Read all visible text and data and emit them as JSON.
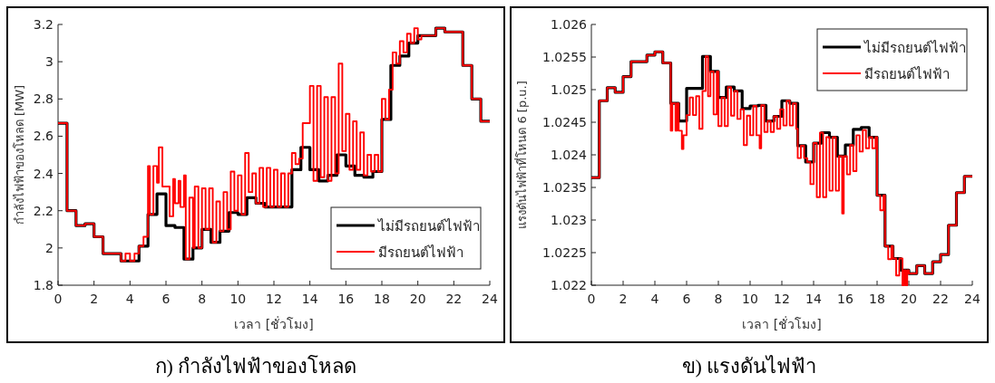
{
  "chart_data": [
    {
      "type": "step",
      "title": "ก) กำลังไฟฟ้าของโหลด",
      "xlabel": "เวลา [ชั่วโมง]",
      "ylabel": "กำลังไฟฟ้าของโหลด [MW]",
      "xlim": [
        0,
        24
      ],
      "xticks": [
        0,
        2,
        4,
        6,
        8,
        10,
        12,
        14,
        16,
        18,
        20,
        22,
        24
      ],
      "ylim": [
        1.8,
        3.2
      ],
      "yticks": [
        1.8,
        2,
        2.2,
        2.4,
        2.6,
        2.8,
        3,
        3.2
      ],
      "legend": "bottom right",
      "grid": false,
      "line_style": "solid",
      "series": [
        {
          "name": "ไม่มีรถยนต์ไฟฟ้า",
          "color": "#000000",
          "x": [
            0,
            0.5,
            1,
            1.5,
            2,
            2.5,
            3,
            3.5,
            4,
            4.5,
            5,
            5.5,
            6,
            6.5,
            7,
            7.5,
            8,
            8.5,
            9,
            9.5,
            10,
            10.5,
            11,
            11.5,
            12,
            12.5,
            13,
            13.5,
            14,
            14.5,
            15,
            15.5,
            16,
            16.5,
            17,
            17.5,
            18,
            18.5,
            19,
            19.5,
            20,
            20.5,
            21,
            21.5,
            22,
            22.5,
            23,
            23.5,
            24
          ],
          "values": [
            2.67,
            2.2,
            2.12,
            2.13,
            2.06,
            1.97,
            1.97,
            1.93,
            1.93,
            2.01,
            2.18,
            2.29,
            2.12,
            2.11,
            1.94,
            2.0,
            2.1,
            2.03,
            2.09,
            2.19,
            2.18,
            2.27,
            2.24,
            2.22,
            2.22,
            2.22,
            2.42,
            2.54,
            2.42,
            2.36,
            2.39,
            2.5,
            2.44,
            2.39,
            2.38,
            2.41,
            2.69,
            2.98,
            3.03,
            3.1,
            3.14,
            3.14,
            3.18,
            3.16,
            3.16,
            2.98,
            2.8,
            2.68,
            2.68
          ]
        },
        {
          "name": "มีรถยนต์ไฟฟ้า",
          "color": "#ff0000",
          "x": [
            0,
            0.5,
            1,
            1.5,
            2,
            2.5,
            3.5,
            3.75,
            4,
            4.25,
            4.5,
            4.75,
            5,
            5.1,
            5.3,
            5.5,
            5.6,
            5.8,
            6,
            6.2,
            6.4,
            6.5,
            6.7,
            6.8,
            7,
            7.1,
            7.3,
            7.5,
            7.6,
            7.8,
            8,
            8.2,
            8.4,
            8.6,
            8.8,
            9,
            9.2,
            9.4,
            9.6,
            9.8,
            10,
            10.2,
            10.4,
            10.6,
            10.8,
            11,
            11.2,
            11.4,
            11.6,
            11.8,
            12,
            12.2,
            12.4,
            12.6,
            12.8,
            13,
            13.2,
            13.4,
            13.6,
            14,
            14.2,
            14.4,
            14.6,
            14.8,
            15,
            15.2,
            15.4,
            15.6,
            15.8,
            16,
            16.2,
            16.4,
            16.6,
            16.8,
            17,
            17.2,
            17.4,
            17.6,
            17.8,
            18,
            18.2,
            18.4,
            18.6,
            18.8,
            19,
            19.2,
            19.4,
            19.6,
            19.8,
            20,
            20.2,
            21,
            21.5,
            22.5,
            23,
            23.5,
            24
          ],
          "values": [
            2.67,
            2.2,
            2.12,
            2.13,
            2.06,
            1.97,
            1.93,
            1.97,
            1.93,
            1.97,
            2.01,
            2.06,
            2.44,
            2.18,
            2.44,
            2.35,
            2.54,
            2.33,
            2.33,
            2.17,
            2.37,
            2.24,
            2.36,
            2.22,
            2.39,
            1.94,
            2.27,
            2.0,
            2.33,
            2.0,
            2.32,
            2.1,
            2.32,
            2.03,
            2.25,
            2.09,
            2.3,
            2.1,
            2.41,
            2.2,
            2.39,
            2.18,
            2.51,
            2.3,
            2.4,
            2.24,
            2.43,
            2.22,
            2.43,
            2.22,
            2.42,
            2.22,
            2.4,
            2.22,
            2.4,
            2.51,
            2.45,
            2.48,
            2.67,
            2.87,
            2.36,
            2.87,
            2.38,
            2.81,
            2.36,
            2.81,
            2.4,
            2.99,
            2.52,
            2.72,
            2.42,
            2.68,
            2.42,
            2.62,
            2.39,
            2.5,
            2.41,
            2.5,
            2.41,
            2.8,
            2.69,
            2.85,
            3.05,
            2.99,
            3.11,
            3.05,
            3.15,
            3.1,
            3.18,
            3.12,
            3.14,
            3.18,
            3.16,
            2.98,
            2.8,
            2.68,
            2.68
          ]
        }
      ]
    },
    {
      "type": "step",
      "title": "ข) แรงดันไฟฟ้า",
      "xlabel": "เวลา [ชั่วโมง]",
      "ylabel": "แรงดันไฟฟ้าที่โหนด 6 [p.u.]",
      "xlim": [
        0,
        24
      ],
      "xticks": [
        0,
        2,
        4,
        6,
        8,
        10,
        12,
        14,
        16,
        18,
        20,
        22,
        24
      ],
      "ylim": [
        1.022,
        1.026
      ],
      "yticks": [
        1.022,
        1.0225,
        1.023,
        1.0235,
        1.024,
        1.0245,
        1.025,
        1.0255,
        1.026
      ],
      "legend": "top right",
      "grid": false,
      "line_style": "solid",
      "series": [
        {
          "name": "ไม่มีรถยนต์ไฟฟ้า",
          "color": "#000000",
          "x": [
            0,
            0.5,
            1,
            1.5,
            2,
            2.5,
            3,
            3.5,
            4,
            4.5,
            5,
            5.5,
            6,
            6.5,
            7,
            7.5,
            8,
            8.5,
            9,
            9.5,
            10,
            10.5,
            11,
            11.5,
            12,
            12.5,
            13,
            13.5,
            14,
            14.5,
            15,
            15.5,
            16,
            16.5,
            17,
            17.5,
            18,
            18.5,
            19,
            19.5,
            20,
            20.5,
            21,
            21.5,
            22,
            22.5,
            23,
            23.5,
            24
          ],
          "values": [
            1.02365,
            1.02483,
            1.02503,
            1.02496,
            1.0252,
            1.02543,
            1.02543,
            1.02553,
            1.02558,
            1.02541,
            1.02479,
            1.02452,
            1.02502,
            1.02502,
            1.02551,
            1.02528,
            1.02488,
            1.02504,
            1.02498,
            1.02471,
            1.02475,
            1.02476,
            1.02452,
            1.02459,
            1.02483,
            1.02479,
            1.02414,
            1.02389,
            1.02418,
            1.02434,
            1.02427,
            1.02398,
            1.02415,
            1.02439,
            1.02442,
            1.02427,
            1.02338,
            1.0226,
            1.02241,
            1.02223,
            1.02218,
            1.0223,
            1.02218,
            1.02236,
            1.02247,
            1.02292,
            1.02342,
            1.02367,
            1.02367
          ]
        },
        {
          "name": "มีรถยนต์ไฟฟ้า",
          "color": "#ff0000",
          "x": [
            0,
            0.5,
            1,
            1.5,
            2,
            2.5,
            3.5,
            4,
            4.5,
            5,
            5.1,
            5.3,
            5.4,
            5.5,
            5.7,
            5.8,
            6,
            6.2,
            6.4,
            6.6,
            6.8,
            7,
            7.2,
            7.35,
            7.5,
            7.7,
            7.9,
            8,
            8.2,
            8.4,
            8.6,
            8.8,
            9,
            9.2,
            9.4,
            9.6,
            9.8,
            10,
            10.2,
            10.4,
            10.6,
            10.7,
            10.9,
            11.1,
            11.3,
            11.5,
            11.7,
            11.9,
            12.1,
            12.3,
            12.5,
            12.7,
            12.9,
            13,
            13.2,
            13.4,
            13.6,
            13.8,
            14,
            14.2,
            14.4,
            14.6,
            14.8,
            15,
            15.2,
            15.4,
            15.6,
            15.8,
            15.9,
            16.1,
            16.3,
            16.5,
            16.7,
            16.9,
            17.1,
            17.3,
            17.5,
            17.7,
            17.9,
            18,
            18.2,
            18.4,
            18.5,
            18.7,
            18.9,
            19,
            19.2,
            19.4,
            19.6,
            19.7,
            19.8,
            19.9,
            20,
            20.5,
            21,
            21.5,
            22,
            22.5,
            23,
            23.5,
            24
          ],
          "values": [
            1.02365,
            1.02483,
            1.02503,
            1.02496,
            1.0252,
            1.02543,
            1.02553,
            1.02558,
            1.02541,
            1.02437,
            1.02479,
            1.02437,
            1.02479,
            1.02437,
            1.02409,
            1.0243,
            1.02461,
            1.02488,
            1.02461,
            1.0249,
            1.0244,
            1.02498,
            1.02551,
            1.0249,
            1.02528,
            1.02462,
            1.02528,
            1.02444,
            1.02488,
            1.02444,
            1.02504,
            1.0246,
            1.02498,
            1.02455,
            1.0247,
            1.02415,
            1.0246,
            1.0243,
            1.02475,
            1.0243,
            1.0241,
            1.02476,
            1.02435,
            1.02452,
            1.02435,
            1.02459,
            1.0244,
            1.0247,
            1.02445,
            1.02483,
            1.02445,
            1.02479,
            1.0244,
            1.02395,
            1.02414,
            1.02395,
            1.02389,
            1.02355,
            1.02418,
            1.02335,
            1.02434,
            1.02335,
            1.02427,
            1.02345,
            1.02427,
            1.02345,
            1.02398,
            1.0231,
            1.02398,
            1.0237,
            1.02415,
            1.02375,
            1.0243,
            1.02405,
            1.02438,
            1.0241,
            1.02427,
            1.0241,
            1.02427,
            1.02338,
            1.02315,
            1.02338,
            1.0226,
            1.0224,
            1.0226,
            1.02241,
            1.02215,
            1.02241,
            1.022,
            1.02223,
            1.022,
            1.02223,
            1.02218,
            1.0223,
            1.02218,
            1.02236,
            1.02247,
            1.02292,
            1.02342,
            1.02367,
            1.02367
          ]
        }
      ]
    }
  ]
}
